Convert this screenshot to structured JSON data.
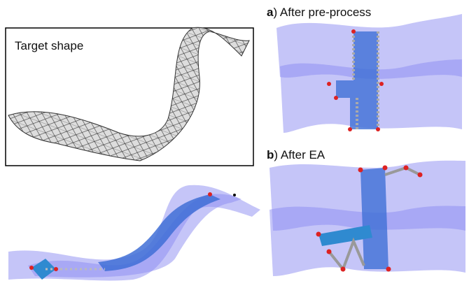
{
  "panels": [
    {
      "label": "Target shape"
    },
    {
      "letter": "a",
      "label": ") After pre-process"
    },
    {
      "letter": "b",
      "label": ") After EA"
    }
  ]
}
